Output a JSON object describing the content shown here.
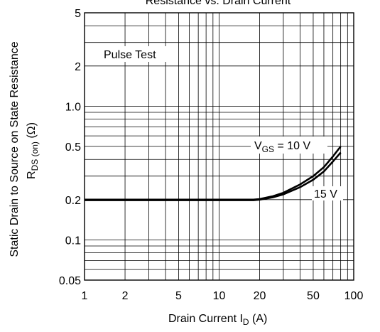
{
  "chart_data": {
    "type": "line",
    "title": "Resistance vs. Drain Current",
    "xlabel_main": "Drain Current I",
    "xlabel_sub": "D",
    "xlabel_unit": " (A)",
    "ylabel_line1": "Static Drain to Source on State Resistance",
    "ylabel_main": "R",
    "ylabel_sub": "DS (on)",
    "ylabel_unit": "(Ω)",
    "x_scale": "log",
    "y_scale": "log",
    "xlim": [
      1,
      100
    ],
    "ylim": [
      0.05,
      5
    ],
    "x_ticks": [
      1,
      2,
      5,
      10,
      20,
      50,
      100
    ],
    "x_tick_labels": [
      "1",
      "2",
      "5",
      "10",
      "20",
      "50",
      "100"
    ],
    "y_ticks": [
      0.05,
      0.1,
      0.2,
      0.5,
      1,
      2,
      5
    ],
    "y_tick_labels": [
      "0.05",
      "0.1",
      "0.2",
      "0.5",
      "1.0",
      "2",
      "5"
    ],
    "grid": true,
    "annotation_pulse": "Pulse Test",
    "annotation_vgs_main": "V",
    "annotation_vgs_sub": "GS",
    "annotation_vgs_value": " = 10 V",
    "annotation_15v": "15 V",
    "series": [
      {
        "name": "10 V",
        "x": [
          1,
          10,
          18,
          20,
          25,
          30,
          40,
          50,
          60,
          70,
          80
        ],
        "y": [
          0.2,
          0.2,
          0.2,
          0.202,
          0.212,
          0.225,
          0.26,
          0.3,
          0.35,
          0.42,
          0.5
        ]
      },
      {
        "name": "15 V",
        "x": [
          1,
          10,
          18,
          20,
          25,
          30,
          40,
          50,
          60,
          70,
          80
        ],
        "y": [
          0.198,
          0.198,
          0.198,
          0.2,
          0.208,
          0.219,
          0.248,
          0.282,
          0.325,
          0.385,
          0.45
        ]
      }
    ]
  }
}
